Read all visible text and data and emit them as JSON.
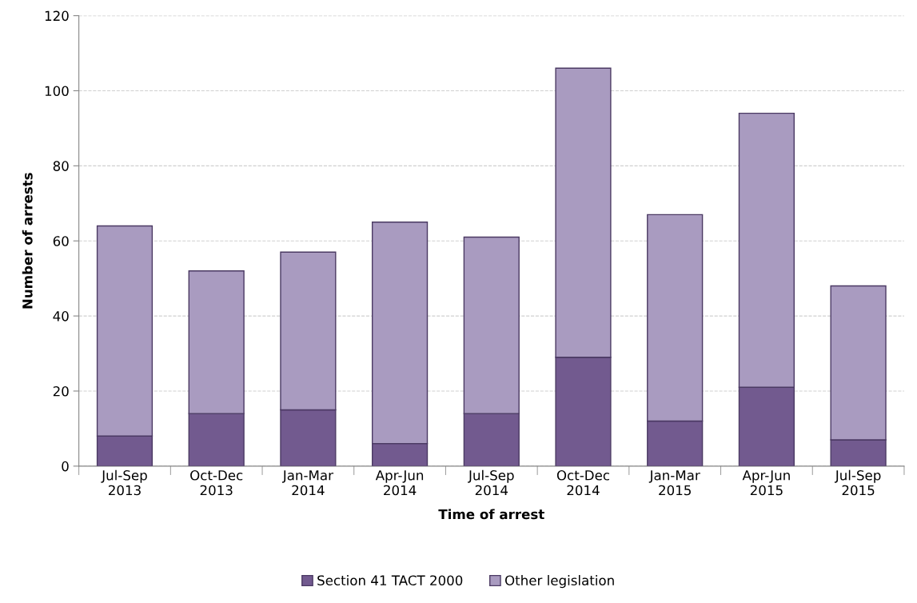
{
  "chart_data": {
    "type": "bar",
    "stacked": true,
    "xlabel": "Time of arrest",
    "ylabel": "Number of arrests",
    "categories": [
      "Jul-Sep\n2013",
      "Oct-Dec\n2013",
      "Jan-Mar\n2014",
      "Apr-Jun\n2014",
      "Jul-Sep\n2014",
      "Oct-Dec\n2014",
      "Jan-Mar\n2015",
      "Apr-Jun\n2015",
      "Jul-Sep\n2015"
    ],
    "series": [
      {
        "name": "Section 41 TACT 2000",
        "color": "#725a8f",
        "values": [
          8,
          14,
          15,
          6,
          14,
          29,
          12,
          21,
          7
        ]
      },
      {
        "name": "Other legislation",
        "color": "#a99bc0",
        "values": [
          56,
          38,
          42,
          59,
          47,
          77,
          55,
          73,
          41
        ]
      }
    ],
    "ylim": [
      0,
      120
    ],
    "yticks": [
      0,
      20,
      40,
      60,
      80,
      100,
      120
    ],
    "grid": "y",
    "legend": "bottom"
  }
}
